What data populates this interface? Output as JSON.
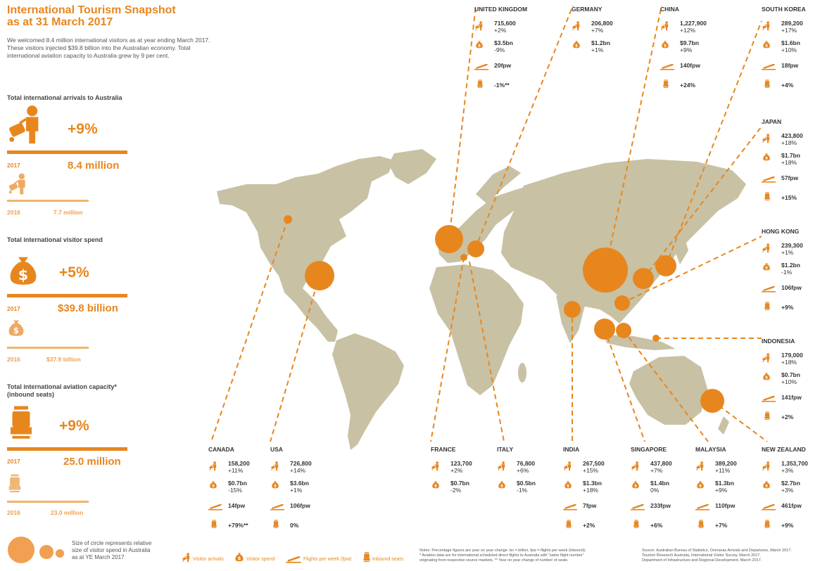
{
  "header": {
    "title_line1": "International Tourism Snapshot",
    "title_line2": "as at 31 March 2017",
    "intro": "We welcomed 8.4 million international visitors as at year ending March 2017. These visitors injected $39.8 billion into the Australian economy. Total international aviation capacity to Australia grew by 9 per cent."
  },
  "arrivals": {
    "heading": "Total international arrivals to Australia",
    "pct": "+9%",
    "year_now": "2017",
    "value_now": "8.4 million",
    "year_prev": "2016",
    "value_prev": "7.7 million"
  },
  "spend": {
    "heading": "Total international visitor spend",
    "pct": "+5%",
    "year_now": "2017",
    "value_now": "$39.8 billion",
    "year_prev": "2016",
    "value_prev": "$37.9 billion"
  },
  "capacity": {
    "heading_line1": "Total international aviation capacity*",
    "heading_line2": "(inbound seats)",
    "pct": "+9%",
    "year_now": "2017",
    "value_now": "25.0 million",
    "year_prev": "2016",
    "value_prev": "23.0 million"
  },
  "circle_legend": {
    "line1": "Size of circle represents relative",
    "line2": "size of visitor spend in Australia",
    "line3": "as at YE March 2017"
  },
  "icon_legend": {
    "arrivals": "Visitor arrivals",
    "spend": "Visitor spend",
    "flights": "Flights per week (fpw)",
    "seats": "Inbound seats"
  },
  "notes": {
    "line1": "Notes: Percentage figures are year on year change. bn = billion, fpw = flights per week (inbound).",
    "line2": "* Aviation data are for international scheduled direct flights to Australia with \"same flight number\"",
    "line3": "originating from respective source markets. ** Year on year change of number of seats."
  },
  "sources": {
    "line1": "Source: Australian Bureau of Statistics, Overseas Arrivals and Departures, March 2017.",
    "line2": "Tourism Research Australia, International Visitor Survey, March 2017.",
    "line3": "Department of Infrastructure and Regional Development, March 2017."
  },
  "colors": {
    "accent": "#e8861e",
    "map": "#c8c1a4"
  },
  "countries": {
    "uk": {
      "name": "UNITED KINGDOM",
      "arr": "715,600",
      "arr_ch": "+2%",
      "sp": "$3.5bn",
      "sp_ch": "-9%",
      "fpw": "20fpw",
      "seats": "-1%**"
    },
    "germany": {
      "name": "GERMANY",
      "arr": "206,800",
      "arr_ch": "+7%",
      "sp": "$1.2bn",
      "sp_ch": "+1%"
    },
    "china": {
      "name": "CHINA",
      "arr": "1,227,900",
      "arr_ch": "+12%",
      "sp": "$9.7bn",
      "sp_ch": "+9%",
      "fpw": "140fpw",
      "seats": "+24%"
    },
    "south_korea": {
      "name": "SOUTH KOREA",
      "arr": "289,200",
      "arr_ch": "+17%",
      "sp": "$1.6bn",
      "sp_ch": "+10%",
      "fpw": "18fpw",
      "seats": "+4%"
    },
    "japan": {
      "name": "JAPAN",
      "arr": "423,800",
      "arr_ch": "+18%",
      "sp": "$1.7bn",
      "sp_ch": "+18%",
      "fpw": "57fpw",
      "seats": "+15%"
    },
    "hong_kong": {
      "name": "HONG KONG",
      "arr": "239,300",
      "arr_ch": "+1%",
      "sp": "$1.2bn",
      "sp_ch": "-1%",
      "fpw": "106fpw",
      "seats": "+9%"
    },
    "indonesia": {
      "name": "INDONESIA",
      "arr": "179,000",
      "arr_ch": "+18%",
      "sp": "$0.7bn",
      "sp_ch": "+10%",
      "fpw": "141fpw",
      "seats": "+2%"
    },
    "canada": {
      "name": "CANADA",
      "arr": "158,200",
      "arr_ch": "+11%",
      "sp": "$0.7bn",
      "sp_ch": "-15%",
      "fpw": "14fpw",
      "seats": "+79%**"
    },
    "usa": {
      "name": "USA",
      "arr": "726,800",
      "arr_ch": "+14%",
      "sp": "$3.6bn",
      "sp_ch": "+1%",
      "fpw": "106fpw",
      "seats": "0%"
    },
    "france": {
      "name": "FRANCE",
      "arr": "123,700",
      "arr_ch": "+2%",
      "sp": "$0.7bn",
      "sp_ch": "-2%"
    },
    "italy": {
      "name": "ITALY",
      "arr": "76,800",
      "arr_ch": "+6%",
      "sp": "$0.5bn",
      "sp_ch": "-1%"
    },
    "india": {
      "name": "INDIA",
      "arr": "267,500",
      "arr_ch": "+15%",
      "sp": "$1.3bn",
      "sp_ch": "+18%",
      "fpw": "7fpw",
      "seats": "+2%"
    },
    "singapore": {
      "name": "SINGAPORE",
      "arr": "437,800",
      "arr_ch": "+7%",
      "sp": "$1.4bn",
      "sp_ch": "0%",
      "fpw": "233fpw",
      "seats": "+6%"
    },
    "malaysia": {
      "name": "MALAYSIA",
      "arr": "389,200",
      "arr_ch": "+11%",
      "sp": "$1.3bn",
      "sp_ch": "+9%",
      "fpw": "110fpw",
      "seats": "+7%"
    },
    "new_zealand": {
      "name": "NEW ZEALAND",
      "arr": "1,353,700",
      "arr_ch": "+3%",
      "sp": "$2.7bn",
      "sp_ch": "+3%",
      "fpw": "461fpw",
      "seats": "+9%"
    }
  }
}
